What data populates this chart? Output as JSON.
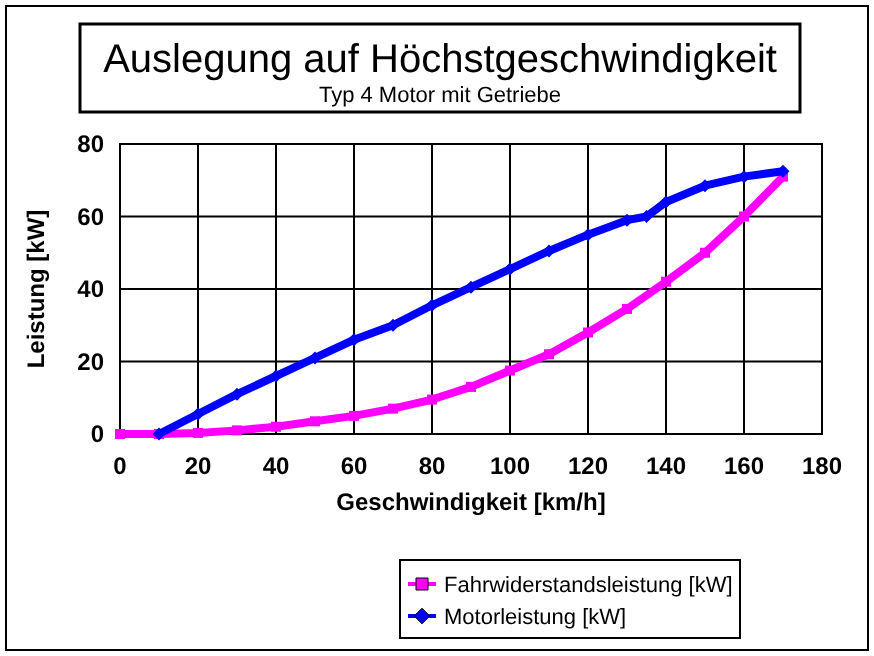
{
  "chart_data": {
    "type": "line",
    "title": "Auslegung auf Höchstgeschwindigkeit",
    "subtitle": "Typ 4 Motor mit Getriebe",
    "xlabel": "Geschwindigkeit [km/h]",
    "ylabel": "Leistung [kW]",
    "xlim": [
      0,
      180
    ],
    "xticks": [
      0,
      20,
      40,
      60,
      80,
      100,
      120,
      140,
      160,
      180
    ],
    "ylim": [
      0,
      80
    ],
    "yticks": [
      0,
      20,
      40,
      60,
      80
    ],
    "grid": true,
    "legend": "bottom",
    "series": [
      {
        "name": "Fahrwiderstandsleistung [kW]",
        "color": "#ff00ff",
        "marker": "square",
        "x": [
          0,
          10,
          20,
          30,
          40,
          50,
          60,
          70,
          80,
          90,
          100,
          110,
          120,
          130,
          140,
          150,
          160,
          170
        ],
        "values": [
          0,
          0,
          0.3,
          1,
          2,
          3.5,
          5,
          7,
          9.5,
          13,
          17.5,
          22,
          28,
          34.5,
          42,
          50,
          60,
          71
        ]
      },
      {
        "name": "Motorleistung [kW]",
        "color": "#0000ff",
        "marker": "diamond",
        "x": [
          10,
          20,
          30,
          40,
          50,
          60,
          70,
          80,
          90,
          100,
          110,
          120,
          130,
          135,
          140,
          150,
          160,
          170
        ],
        "values": [
          0,
          5.5,
          11,
          16,
          21,
          26,
          30,
          35.5,
          40.5,
          45.5,
          50.5,
          55,
          59,
          60,
          64,
          68.5,
          71,
          72.5
        ]
      }
    ]
  }
}
